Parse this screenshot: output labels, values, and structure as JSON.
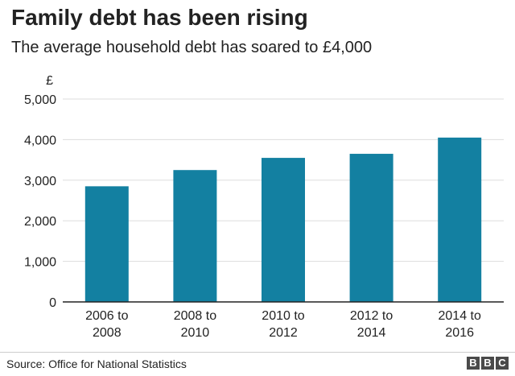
{
  "header": {
    "title": "Family debt has been rising",
    "subtitle": "The average household debt has soared to £4,000"
  },
  "footer": {
    "source": "Source: Office for National Statistics",
    "logo_letters": [
      "B",
      "B",
      "C"
    ]
  },
  "colors": {
    "bar": "#1380A1",
    "grid": "#dddddd",
    "axis": "#222222",
    "text": "#222222"
  },
  "chart_data": {
    "type": "bar",
    "title": "Family debt has been rising",
    "subtitle": "The average household debt has soared to £4,000",
    "ylabel": "£",
    "xlabel": "",
    "categories": [
      [
        "2006 to",
        "2008"
      ],
      [
        "2008 to",
        "2010"
      ],
      [
        "2010 to",
        "2012"
      ],
      [
        "2012 to",
        "2014"
      ],
      [
        "2014 to",
        "2016"
      ]
    ],
    "values": [
      2850,
      3250,
      3550,
      3650,
      4050
    ],
    "ylim": [
      0,
      5000
    ],
    "yticks": [
      0,
      1000,
      2000,
      3000,
      4000,
      5000
    ],
    "ytick_labels": [
      "0",
      "1,000",
      "2,000",
      "3,000",
      "4,000",
      "5,000"
    ],
    "grid": true,
    "legend": "none"
  }
}
